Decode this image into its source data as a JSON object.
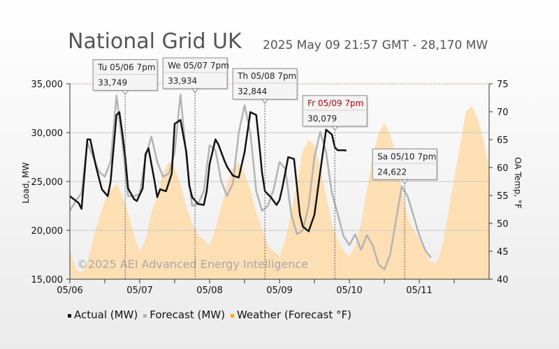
{
  "chart_data": {
    "type": "line",
    "title": "National Grid UK",
    "subtitle": "2025 May 09 21:57 GMT - 28,170 MW",
    "xlabel": "",
    "ylabel": "Load, MW",
    "y2label": "OA Temp, °F",
    "x_tick_labels": [
      "05/06",
      "05/07",
      "05/08",
      "05/09",
      "05/10",
      "05/11"
    ],
    "x_ticks_hours": [
      0,
      24,
      48,
      72,
      96,
      120
    ],
    "xlim_hours": [
      0,
      144
    ],
    "ylim": [
      15000,
      35000
    ],
    "y_ticks": [
      15000,
      20000,
      25000,
      30000,
      35000
    ],
    "y_tick_labels": [
      "15,000",
      "20,000",
      "25,000",
      "30,000",
      "35,000"
    ],
    "y2lim": [
      40,
      75
    ],
    "y2_ticks": [
      40,
      45,
      50,
      55,
      60,
      65,
      70,
      75
    ],
    "y2_tick_labels": [
      "40",
      "45",
      "50",
      "55",
      "60",
      "65",
      "70",
      "75"
    ],
    "watermark": "©2025 AEI Advanced Energy Intelligence",
    "legend_position": "bottom-left",
    "colors": {
      "actual": "#111111",
      "forecast": "#b3b3b3",
      "weather": "#ffdca8",
      "weather_legend": "#f5a623",
      "callout_red": "#cc0000"
    },
    "series": [
      {
        "name": "Actual (MW)",
        "x_hours": [
          0,
          3,
          4,
          6,
          7,
          9,
          11,
          13,
          14,
          16,
          17,
          18,
          19,
          20,
          22,
          23,
          25,
          26,
          27,
          29,
          30,
          31,
          33,
          35,
          36,
          38,
          40,
          41,
          42,
          44,
          46,
          47,
          48,
          50,
          51,
          53,
          54,
          56,
          58,
          60,
          62,
          64,
          65,
          66,
          67,
          69,
          71,
          72,
          73,
          75,
          77,
          79,
          80,
          82,
          84,
          86,
          88,
          90,
          91,
          92,
          93,
          94,
          95
        ],
        "values": [
          23500,
          22800,
          22200,
          29300,
          29300,
          26500,
          24200,
          23500,
          25000,
          31800,
          32100,
          30000,
          27500,
          24300,
          23200,
          23000,
          24300,
          27800,
          28400,
          25200,
          23400,
          24200,
          24000,
          25800,
          30900,
          31300,
          28000,
          24600,
          23400,
          22700,
          22600,
          24000,
          26800,
          29300,
          28800,
          27200,
          26500,
          25600,
          25400,
          28000,
          32100,
          31800,
          29000,
          25900,
          24000,
          23400,
          22600,
          23100,
          24400,
          27500,
          27300,
          21600,
          20400,
          19900,
          21600,
          26000,
          30300,
          29800,
          28500,
          28200,
          28200,
          28200,
          28170
        ]
      },
      {
        "name": "Forecast (MW)",
        "x_hours": [
          0,
          2,
          4,
          6,
          8,
          10,
          12,
          14,
          16,
          18,
          20,
          22,
          24,
          26,
          28,
          30,
          32,
          34,
          36,
          38,
          40,
          42,
          44,
          46,
          48,
          50,
          52,
          54,
          56,
          58,
          60,
          62,
          64,
          66,
          68,
          70,
          72,
          74,
          76,
          78,
          80,
          82,
          84,
          86,
          88,
          90,
          92,
          94,
          96,
          98,
          100,
          102,
          104,
          106,
          108,
          110,
          112,
          114,
          116,
          118,
          120,
          122,
          124
        ],
        "values": [
          22000,
          23000,
          23800,
          29000,
          27500,
          26000,
          25500,
          27000,
          33800,
          29000,
          23500,
          23500,
          23700,
          27500,
          29600,
          27000,
          25500,
          25800,
          28000,
          33900,
          27500,
          22500,
          22700,
          24000,
          28700,
          28200,
          25000,
          23500,
          24800,
          30000,
          32800,
          30000,
          24000,
          22000,
          22500,
          24200,
          27000,
          26300,
          21700,
          19600,
          20000,
          22500,
          27500,
          30100,
          28000,
          23800,
          21700,
          19400,
          18500,
          19600,
          18000,
          19500,
          18500,
          16500,
          16000,
          17500,
          21000,
          24500,
          23500,
          21500,
          19500,
          18000,
          17200
        ]
      },
      {
        "name": "Weather (Forecast °F)",
        "x_hours": [
          0,
          2,
          4,
          6,
          8,
          10,
          12,
          14,
          16,
          18,
          20,
          22,
          24,
          26,
          28,
          30,
          32,
          34,
          36,
          38,
          40,
          42,
          44,
          46,
          48,
          50,
          52,
          54,
          56,
          58,
          60,
          62,
          64,
          66,
          68,
          70,
          72,
          74,
          76,
          78,
          80,
          82,
          84,
          86,
          88,
          90,
          92,
          94,
          96,
          98,
          100,
          102,
          104,
          106,
          108,
          110,
          112,
          114,
          116,
          118,
          120,
          122,
          124,
          126,
          128,
          130,
          132,
          134,
          136,
          138,
          140,
          142,
          144
        ],
        "values": [
          45,
          42,
          41,
          43,
          47,
          51,
          54,
          56,
          57,
          55,
          52,
          48,
          45,
          47,
          52,
          55,
          59,
          61,
          60,
          57,
          53,
          50,
          48,
          47,
          46,
          49,
          53,
          57,
          60,
          61,
          59,
          56,
          52,
          49,
          46,
          45,
          44,
          47,
          52,
          57,
          63,
          65,
          64,
          60,
          55,
          50,
          47,
          45,
          44,
          46,
          50,
          56,
          62,
          66,
          68,
          66,
          62,
          56,
          51,
          49,
          47,
          45,
          43,
          43,
          46,
          52,
          58,
          64,
          70,
          71,
          69,
          65,
          60
        ]
      }
    ],
    "callouts": [
      {
        "label": "Tu 05/06 7pm",
        "value": "33,749",
        "x_hours": 19,
        "y": 33749,
        "highlight": false
      },
      {
        "label": "We 05/07 7pm",
        "value": "33,934",
        "x_hours": 43,
        "y": 33934,
        "highlight": false
      },
      {
        "label": "Th 05/08 7pm",
        "value": "32,844",
        "x_hours": 67,
        "y": 32844,
        "highlight": false
      },
      {
        "label": "Fr 05/09 7pm",
        "value": "30,079",
        "x_hours": 91,
        "y": 30079,
        "highlight": true
      },
      {
        "label": "Sa 05/10 7pm",
        "value": "24,622",
        "x_hours": 115,
        "y": 24622,
        "highlight": false
      }
    ]
  }
}
